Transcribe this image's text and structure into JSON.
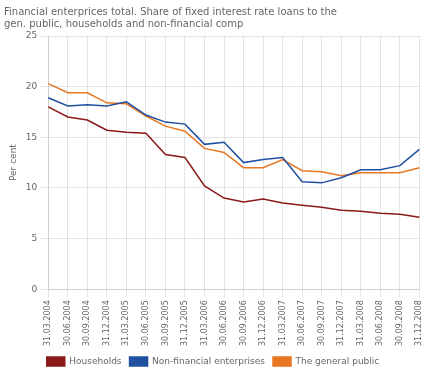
{
  "chart_data": {
    "type": "line",
    "title": [
      "Financial enterprices total. Share of fixed interest rate loans to the",
      "gen. public, households and non-financial comp"
    ],
    "ylabel": "Per cent",
    "categories": [
      "31.03.2004",
      "30.06.2004",
      "30.09.2004",
      "31.12.2004",
      "31.03.2005",
      "30.06.2005",
      "30.09.2005",
      "31.12.2005",
      "31.03.2006",
      "30.06.2006",
      "30.09.2006",
      "31.12.2006",
      "31.03.2007",
      "30.06.2007",
      "30.09.2007",
      "31.12.2007",
      "31.03.2008",
      "30.06.2008",
      "30.09.2008",
      "31.12.2008"
    ],
    "series": [
      {
        "name": "Households",
        "color": "#8B1A1A",
        "values": [
          18.0,
          17.0,
          16.7,
          15.7,
          15.5,
          15.4,
          13.3,
          13.0,
          10.2,
          9.0,
          8.6,
          8.9,
          8.5,
          8.3,
          8.1,
          7.8,
          7.7,
          7.5,
          7.4,
          7.1
        ]
      },
      {
        "name": "Non-financial enterprises",
        "color": "#2050A0",
        "values": [
          18.9,
          18.1,
          18.2,
          18.1,
          18.5,
          17.2,
          16.5,
          16.3,
          14.3,
          14.5,
          12.5,
          12.8,
          13.0,
          10.6,
          10.5,
          11.0,
          11.8,
          11.8,
          12.2,
          13.8
        ]
      },
      {
        "name": "The general public",
        "color": "#E87722",
        "values": [
          20.3,
          19.4,
          19.4,
          18.4,
          18.3,
          17.1,
          16.1,
          15.6,
          13.9,
          13.5,
          12.0,
          12.0,
          12.8,
          11.7,
          11.6,
          11.2,
          11.5,
          11.5,
          11.5,
          12.0
        ]
      }
    ],
    "ylim": [
      0,
      25
    ],
    "yticks": [
      0,
      5,
      10,
      15,
      20,
      25
    ],
    "grid": true,
    "legend": "bottom"
  }
}
